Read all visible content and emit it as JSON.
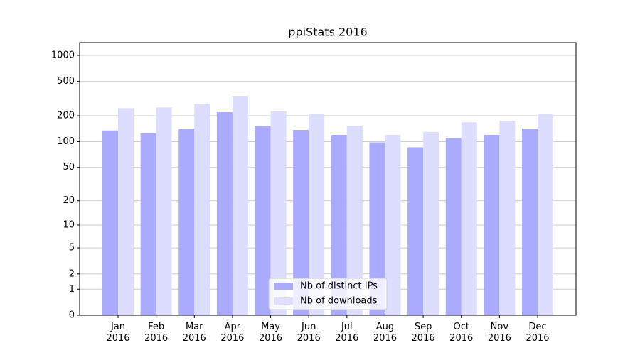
{
  "chart_data": {
    "type": "bar",
    "title": "ppiStats 2016",
    "categories": [
      "Jan\n2016",
      "Feb\n2016",
      "Mar\n2016",
      "Apr\n2016",
      "May\n2016",
      "Jun\n2016",
      "Jul\n2016",
      "Aug\n2016",
      "Sep\n2016",
      "Oct\n2016",
      "Nov\n2016",
      "Dec\n2016"
    ],
    "series": [
      {
        "name": "Nb of distinct IPs",
        "color": "#aaaaff",
        "values": [
          135,
          125,
          142,
          220,
          153,
          137,
          120,
          98,
          86,
          110,
          120,
          142
        ]
      },
      {
        "name": "Nb of downloads",
        "color": "#ddddff",
        "values": [
          245,
          250,
          275,
          340,
          225,
          210,
          153,
          120,
          130,
          168,
          175,
          210
        ]
      }
    ],
    "yscale": "log1p",
    "ylim": [
      0,
      1405
    ],
    "yticks": [
      0,
      1,
      2,
      5,
      10,
      20,
      50,
      100,
      200,
      500,
      1000
    ],
    "grid": true,
    "legend": "lower center"
  }
}
